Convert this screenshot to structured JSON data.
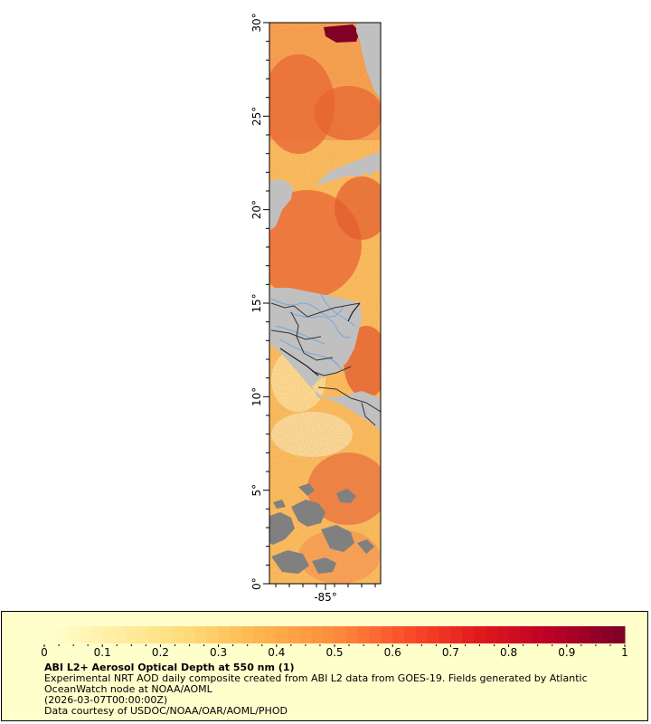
{
  "map": {
    "latitude_labels": [
      "0°",
      "5°",
      "10°",
      "15°",
      "20°",
      "25°",
      "30°"
    ],
    "longitude_labels": [
      "-85°"
    ],
    "colors": {
      "land": "#c0c0c0",
      "no_data": "#808080",
      "rivers": "#7aa8d8",
      "borders": "#333333"
    }
  },
  "legend": {
    "colorbar_ticks": [
      "0",
      "0.1",
      "0.2",
      "0.3",
      "0.4",
      "0.5",
      "0.6",
      "0.7",
      "0.8",
      "0.9",
      "1"
    ],
    "colorbar_range": [
      0,
      1
    ],
    "colorbar_colors": [
      "#ffffcc",
      "#ffeda0",
      "#fed976",
      "#feb24c",
      "#fd8d3c",
      "#fc4e2a",
      "#e31a1c",
      "#bd0026",
      "#800026"
    ],
    "title": "ABI L2+ Aerosol Optical Depth at 550 nm (1)",
    "description": "Experimental NRT AOD daily composite created from ABI L2 data from GOES-19. Fields generated by Atlantic OceanWatch node at NOAA/AOML",
    "date": "(2026-03-07T00:00:00Z)",
    "credit": "Data courtesy of USDOC/NOAA/OAR/AOML/PHOD"
  }
}
